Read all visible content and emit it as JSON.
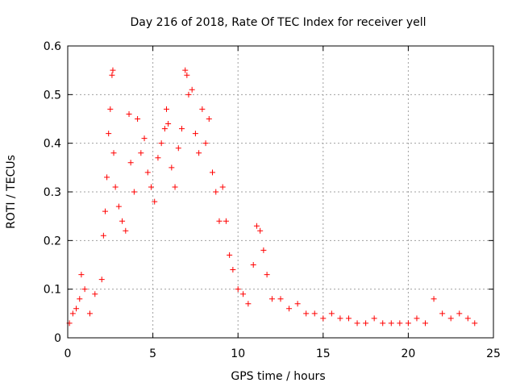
{
  "chart_data": {
    "type": "scatter",
    "title": "Day 216 of 2018, Rate Of TEC Index for receiver yell",
    "xlabel": "GPS time / hours",
    "ylabel": "ROTI / TECUs",
    "xlim": [
      0,
      25
    ],
    "ylim": [
      0,
      0.6
    ],
    "xticks": [
      0,
      5,
      10,
      15,
      20,
      25
    ],
    "yticks": [
      0,
      0.1,
      0.2,
      0.3,
      0.4,
      0.5,
      0.6
    ],
    "xtick_labels": [
      "0",
      "5",
      "10",
      "15",
      "20",
      "25"
    ],
    "ytick_labels": [
      "0",
      "0.1",
      "0.2",
      "0.3",
      "0.4",
      "0.5",
      "0.6"
    ],
    "grid": true,
    "marker": "+",
    "color": "#ff0000",
    "series": [
      {
        "name": "ROTI",
        "points": [
          [
            0.1,
            0.03
          ],
          [
            0.3,
            0.05
          ],
          [
            0.5,
            0.06
          ],
          [
            0.7,
            0.08
          ],
          [
            0.8,
            0.13
          ],
          [
            1.0,
            0.1
          ],
          [
            1.3,
            0.05
          ],
          [
            1.6,
            0.09
          ],
          [
            2.0,
            0.12
          ],
          [
            2.1,
            0.21
          ],
          [
            2.2,
            0.26
          ],
          [
            2.3,
            0.33
          ],
          [
            2.4,
            0.42
          ],
          [
            2.5,
            0.47
          ],
          [
            2.6,
            0.54
          ],
          [
            2.65,
            0.55
          ],
          [
            2.7,
            0.38
          ],
          [
            2.8,
            0.31
          ],
          [
            3.0,
            0.27
          ],
          [
            3.2,
            0.24
          ],
          [
            3.4,
            0.22
          ],
          [
            3.6,
            0.46
          ],
          [
            3.7,
            0.36
          ],
          [
            3.9,
            0.3
          ],
          [
            4.1,
            0.45
          ],
          [
            4.3,
            0.38
          ],
          [
            4.5,
            0.41
          ],
          [
            4.7,
            0.34
          ],
          [
            4.9,
            0.31
          ],
          [
            5.1,
            0.28
          ],
          [
            5.3,
            0.37
          ],
          [
            5.5,
            0.4
          ],
          [
            5.7,
            0.43
          ],
          [
            5.8,
            0.47
          ],
          [
            5.9,
            0.44
          ],
          [
            6.1,
            0.35
          ],
          [
            6.3,
            0.31
          ],
          [
            6.5,
            0.39
          ],
          [
            6.7,
            0.43
          ],
          [
            6.9,
            0.55
          ],
          [
            7.0,
            0.54
          ],
          [
            7.1,
            0.5
          ],
          [
            7.3,
            0.51
          ],
          [
            7.5,
            0.42
          ],
          [
            7.7,
            0.38
          ],
          [
            7.9,
            0.47
          ],
          [
            8.1,
            0.4
          ],
          [
            8.3,
            0.45
          ],
          [
            8.5,
            0.34
          ],
          [
            8.7,
            0.3
          ],
          [
            8.9,
            0.24
          ],
          [
            9.1,
            0.31
          ],
          [
            9.3,
            0.24
          ],
          [
            9.5,
            0.17
          ],
          [
            9.7,
            0.14
          ],
          [
            10.0,
            0.1
          ],
          [
            10.3,
            0.09
          ],
          [
            10.6,
            0.07
          ],
          [
            10.9,
            0.15
          ],
          [
            11.1,
            0.23
          ],
          [
            11.3,
            0.22
          ],
          [
            11.5,
            0.18
          ],
          [
            11.7,
            0.13
          ],
          [
            12.0,
            0.08
          ],
          [
            12.5,
            0.08
          ],
          [
            13.0,
            0.06
          ],
          [
            13.5,
            0.07
          ],
          [
            14.0,
            0.05
          ],
          [
            14.5,
            0.05
          ],
          [
            15.0,
            0.04
          ],
          [
            15.5,
            0.05
          ],
          [
            16.0,
            0.04
          ],
          [
            16.5,
            0.04
          ],
          [
            17.0,
            0.03
          ],
          [
            17.5,
            0.03
          ],
          [
            18.0,
            0.04
          ],
          [
            18.5,
            0.03
          ],
          [
            19.0,
            0.03
          ],
          [
            19.5,
            0.03
          ],
          [
            20.0,
            0.03
          ],
          [
            20.5,
            0.04
          ],
          [
            21.0,
            0.03
          ],
          [
            21.5,
            0.08
          ],
          [
            22.0,
            0.05
          ],
          [
            22.5,
            0.04
          ],
          [
            23.0,
            0.05
          ],
          [
            23.5,
            0.04
          ],
          [
            23.9,
            0.03
          ]
        ]
      }
    ]
  }
}
